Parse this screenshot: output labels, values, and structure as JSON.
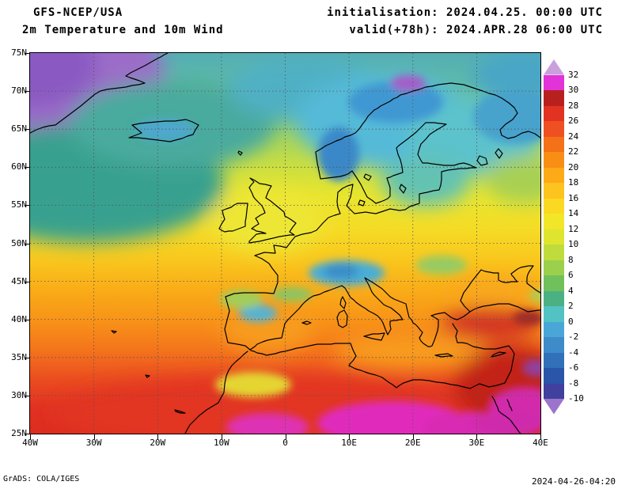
{
  "header": {
    "model": "GFS-NCEP/USA",
    "product": "2m Temperature and 10m Wind",
    "init": "initialisation: 2024.04.25. 00:00 UTC",
    "valid": "valid(+78h): 2024.APR.28 06:00 UTC"
  },
  "axes": {
    "lat_labels": [
      "75N",
      "70N",
      "65N",
      "60N",
      "55N",
      "50N",
      "45N",
      "40N",
      "35N",
      "30N",
      "25N"
    ],
    "lon_labels": [
      "40W",
      "30W",
      "20W",
      "10W",
      "0",
      "10E",
      "20E",
      "30E",
      "40E"
    ]
  },
  "colorbar": {
    "tick_labels": [
      "32",
      "30",
      "28",
      "26",
      "24",
      "22",
      "20",
      "18",
      "16",
      "14",
      "12",
      "10",
      "8",
      "6",
      "4",
      "2",
      "0",
      "-2",
      "-4",
      "-6",
      "-8",
      "-10"
    ],
    "segment_colors": [
      "#c9a0dc",
      "#e233d8",
      "#b82020",
      "#e13222",
      "#ee5022",
      "#f47118",
      "#f98e14",
      "#fcaa16",
      "#fdc31e",
      "#fbd922",
      "#f2e628",
      "#dfe52e",
      "#c0dc3c",
      "#9ad04c",
      "#70c05c",
      "#4bb183",
      "#52c2c4",
      "#4aa6d6",
      "#3e8bca",
      "#3270ba",
      "#2a55a8",
      "#40409e",
      "#9c74cc"
    ]
  },
  "footer": {
    "credit": "GrADS: COLA/IGES",
    "timestamp": "2024-04-26-04:20"
  }
}
